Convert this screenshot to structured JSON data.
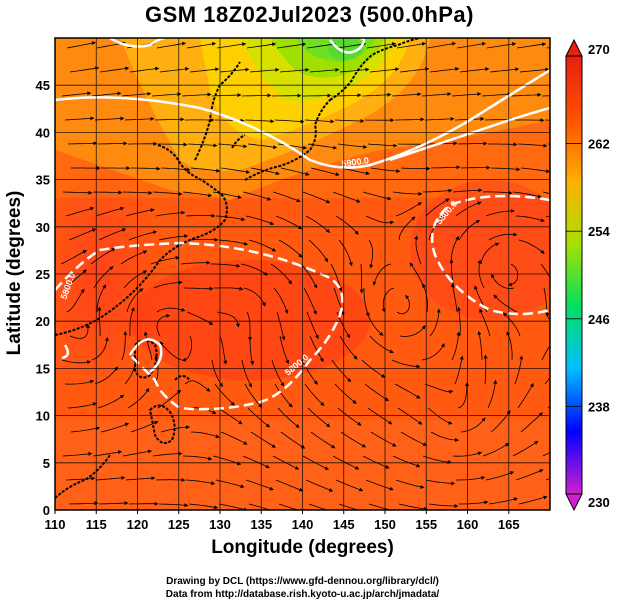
{
  "title": "GSM 18Z02Jul2023 (500.0hPa)",
  "xlabel": "Longitude (degrees)",
  "ylabel": "Latitude  (degrees)",
  "credits": [
    "Drawing by DCL (https://www.gfd-dennou.org/library/dcl/)",
    "Data from http://database.rish.kyoto-u.ac.jp/arch/jmadata/"
  ],
  "chart_data": {
    "type": "heatmap",
    "xlim": [
      110,
      170
    ],
    "ylim": [
      0,
      50
    ],
    "x_ticks": [
      110,
      115,
      120,
      125,
      130,
      135,
      140,
      145,
      150,
      155,
      160,
      165
    ],
    "y_ticks": [
      0,
      5,
      10,
      15,
      20,
      25,
      30,
      35,
      40,
      45
    ],
    "colorbar": {
      "min": 230,
      "max": 270,
      "ticks": [
        270,
        262,
        254,
        246,
        238,
        230
      ],
      "colors": [
        "#d020d0",
        "#0000ff",
        "#00bfff",
        "#00e060",
        "#a8e000",
        "#ffb000",
        "#ff5000",
        "#e82010"
      ]
    },
    "contour_labels": [
      "5800.0",
      "5900.0"
    ],
    "grid": true
  }
}
